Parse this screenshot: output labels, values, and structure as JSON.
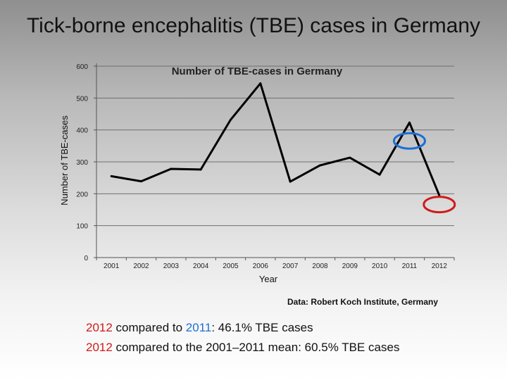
{
  "slide": {
    "title": "Tick-borne encephalitis (TBE) cases in Germany",
    "source": "Data: Robert Koch Institute, Germany",
    "stats": [
      {
        "year_a": "2012",
        "mid": " compared to ",
        "year_b": "2011",
        "rest": ": 46.1% TBE cases"
      },
      {
        "year_a": "2012",
        "mid": " compared to the 2001–2011 mean: 60.5% TBE cases"
      }
    ]
  },
  "chart_data": {
    "type": "line",
    "title": "Number of TBE-cases in Germany",
    "xlabel": "Year",
    "ylabel": "Number of TBE-cases",
    "categories": [
      "2001",
      "2002",
      "2003",
      "2004",
      "2005",
      "2006",
      "2007",
      "2008",
      "2009",
      "2010",
      "2011",
      "2012"
    ],
    "values": [
      255,
      239,
      278,
      276,
      432,
      546,
      238,
      289,
      313,
      260,
      423,
      195
    ],
    "ylim": [
      0,
      600
    ],
    "yticks": [
      0,
      100,
      200,
      300,
      400,
      500,
      600
    ],
    "grid": true,
    "annotations": [
      {
        "kind": "circle",
        "color": "#1c6fd6",
        "target": "2011"
      },
      {
        "kind": "circle",
        "color": "#d11a1a",
        "target": "2012"
      }
    ],
    "line_color": "#000000"
  }
}
